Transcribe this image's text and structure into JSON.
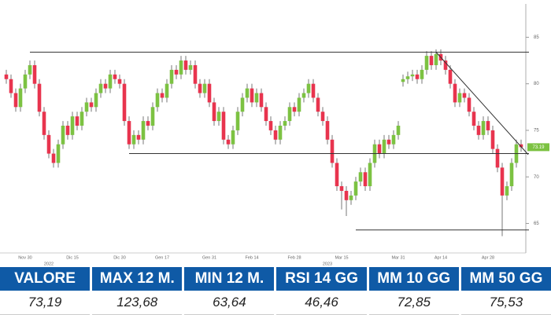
{
  "chart_data": {
    "type": "candlestick",
    "categories": [
      null,
      null,
      null,
      null,
      "Nov 30",
      null,
      null,
      null,
      null,
      null,
      null,
      null,
      null,
      null,
      "Dic 15",
      null,
      null,
      null,
      null,
      null,
      null,
      null,
      null,
      null,
      "Dic 30",
      null,
      null,
      null,
      null,
      null,
      null,
      null,
      null,
      "Gen 17",
      null,
      null,
      null,
      null,
      null,
      null,
      null,
      null,
      null,
      "Gen 31",
      null,
      null,
      null,
      null,
      null,
      null,
      null,
      null,
      "Feb 14",
      null,
      null,
      null,
      null,
      null,
      null,
      null,
      null,
      "Feb 28",
      null,
      null,
      null,
      null,
      null,
      null,
      null,
      null,
      null,
      "Mar 15",
      null,
      null,
      null,
      null,
      null,
      null,
      null,
      null,
      null,
      null,
      null,
      "Mar 31",
      null,
      null,
      null,
      null,
      null,
      null,
      null,
      null,
      "Apr 14",
      null,
      null,
      null,
      null,
      null,
      null,
      null,
      null,
      null,
      "Apr 28",
      null,
      null,
      null,
      null,
      null,
      null,
      null
    ],
    "year_labels": [
      null,
      null,
      null,
      null,
      null,
      null,
      null,
      null,
      null,
      "2022",
      null,
      null,
      null,
      null,
      null,
      null,
      null,
      null,
      null,
      null,
      null,
      null,
      null,
      null,
      null,
      null,
      null,
      null,
      null,
      null,
      null,
      null,
      null,
      null,
      null,
      null,
      null,
      null,
      null,
      null,
      null,
      null,
      null,
      null,
      null,
      null,
      null,
      null,
      null,
      null,
      null,
      null,
      null,
      null,
      null,
      null,
      null,
      null,
      null,
      null,
      null,
      null,
      null,
      null,
      null,
      null,
      null,
      null,
      "2023",
      null,
      null,
      null,
      null,
      null,
      null,
      null,
      null,
      null,
      null,
      null,
      null,
      null,
      null,
      null,
      null,
      null,
      null,
      null,
      null,
      null,
      null,
      null,
      null,
      null,
      null,
      null,
      null,
      null,
      null,
      null,
      null,
      null,
      null,
      null,
      null,
      null,
      null,
      null,
      null,
      null
    ],
    "open": [
      81.0,
      80.5,
      79.0,
      77.5,
      79.5,
      81.0,
      82.0,
      80.0,
      77.0,
      74.5,
      72.5,
      71.5,
      73.5,
      75.5,
      74.5,
      76.5,
      75.5,
      77.0,
      78.0,
      77.5,
      79.0,
      80.0,
      79.5,
      81.0,
      80.5,
      80.0,
      76.0,
      73.5,
      74.5,
      74.0,
      76.0,
      75.5,
      77.5,
      79.0,
      78.5,
      80.0,
      81.5,
      81.0,
      82.5,
      81.5,
      82.0,
      80.0,
      79.0,
      80.0,
      78.0,
      76.0,
      77.0,
      74.0,
      73.5,
      75.0,
      77.0,
      78.5,
      79.5,
      78.0,
      79.0,
      77.5,
      76.0,
      75.0,
      74.0,
      75.5,
      76.0,
      77.5,
      77.0,
      78.5,
      79.0,
      80.0,
      78.5,
      77.0,
      76.0,
      74.0,
      71.5,
      69.0,
      68.5,
      67.5,
      68.0,
      69.5,
      70.5,
      69.0,
      71.5,
      73.5,
      72.5,
      74.0,
      73.5,
      74.5,
      80.2,
      80.5,
      80.8,
      81.0,
      80.5,
      81.5,
      83.0,
      82.0,
      83.2,
      82.5,
      81.5,
      80.0,
      78.0,
      79.0,
      78.5,
      77.0,
      75.5,
      74.5,
      76.0,
      75.0,
      73.0,
      71.0,
      68.0,
      69.0,
      71.5,
      73.5
    ],
    "high": [
      81.5,
      81.0,
      79.5,
      80.0,
      81.5,
      82.5,
      82.5,
      80.5,
      77.5,
      75.0,
      73.0,
      74.0,
      76.0,
      76.0,
      77.0,
      77.0,
      77.5,
      78.5,
      78.5,
      79.5,
      80.5,
      80.5,
      81.5,
      81.5,
      81.0,
      80.5,
      76.5,
      75.0,
      75.0,
      76.5,
      76.5,
      78.0,
      79.5,
      79.5,
      80.5,
      82.0,
      82.0,
      83.0,
      83.0,
      82.5,
      82.5,
      80.5,
      80.5,
      80.5,
      78.5,
      77.5,
      77.5,
      74.5,
      75.5,
      77.5,
      79.0,
      80.0,
      80.0,
      79.5,
      79.5,
      78.0,
      76.5,
      75.5,
      76.0,
      76.5,
      78.0,
      78.0,
      79.0,
      79.5,
      80.5,
      80.5,
      79.0,
      77.5,
      76.5,
      74.5,
      72.0,
      69.5,
      69.0,
      68.5,
      70.0,
      71.0,
      71.0,
      72.0,
      74.0,
      74.0,
      74.5,
      74.5,
      75.0,
      76.0,
      81.0,
      81.3,
      81.5,
      81.5,
      82.0,
      83.5,
      83.5,
      83.7,
      83.7,
      83.0,
      82.0,
      80.5,
      79.5,
      79.5,
      79.0,
      77.5,
      76.0,
      76.5,
      76.5,
      75.5,
      73.5,
      71.5,
      69.5,
      72.0,
      74.0,
      74.0
    ],
    "low": [
      80.0,
      78.5,
      77.0,
      77.0,
      79.0,
      80.5,
      79.5,
      76.5,
      74.0,
      72.0,
      71.0,
      71.0,
      73.0,
      74.0,
      74.0,
      75.0,
      75.0,
      76.5,
      77.0,
      77.0,
      78.5,
      79.0,
      79.0,
      80.0,
      79.5,
      75.5,
      73.0,
      73.0,
      73.5,
      73.5,
      75.0,
      75.0,
      77.0,
      78.0,
      78.0,
      79.5,
      80.5,
      80.5,
      81.0,
      81.0,
      79.5,
      78.5,
      78.5,
      77.5,
      75.5,
      75.5,
      73.5,
      73.0,
      73.0,
      74.5,
      76.5,
      78.0,
      77.5,
      77.5,
      77.0,
      75.5,
      74.5,
      73.5,
      73.5,
      75.0,
      75.5,
      76.5,
      76.5,
      78.0,
      78.5,
      78.0,
      76.5,
      75.5,
      73.5,
      71.0,
      68.5,
      66.5,
      65.8,
      67.0,
      67.5,
      69.0,
      68.5,
      68.5,
      71.0,
      72.0,
      72.0,
      73.0,
      73.0,
      74.0,
      79.7,
      80.0,
      80.3,
      80.0,
      80.0,
      81.0,
      81.5,
      81.5,
      82.0,
      81.0,
      79.5,
      77.5,
      77.5,
      78.0,
      76.5,
      75.0,
      74.0,
      74.0,
      74.5,
      72.5,
      70.5,
      63.64,
      67.5,
      68.5,
      71.0,
      72.7
    ],
    "close": [
      80.5,
      79.0,
      77.5,
      79.5,
      81.0,
      82.0,
      80.0,
      77.0,
      74.5,
      72.5,
      71.5,
      73.5,
      75.5,
      74.5,
      76.5,
      75.5,
      77.0,
      78.0,
      77.5,
      79.0,
      80.0,
      79.5,
      81.0,
      80.5,
      80.0,
      76.0,
      73.5,
      74.5,
      74.0,
      76.0,
      75.5,
      77.5,
      79.0,
      78.5,
      80.0,
      81.5,
      81.0,
      82.5,
      81.5,
      82.0,
      80.0,
      79.0,
      80.0,
      78.0,
      76.0,
      77.0,
      74.0,
      73.5,
      75.0,
      77.0,
      78.5,
      79.5,
      78.0,
      79.0,
      77.5,
      76.0,
      75.0,
      74.0,
      75.5,
      76.0,
      77.5,
      77.0,
      78.5,
      79.0,
      80.0,
      78.5,
      77.0,
      76.0,
      74.0,
      71.5,
      69.0,
      68.5,
      67.5,
      68.0,
      69.5,
      70.5,
      69.0,
      71.5,
      73.5,
      72.5,
      74.0,
      73.5,
      74.5,
      75.5,
      80.5,
      80.8,
      81.0,
      80.5,
      81.5,
      83.0,
      82.0,
      83.2,
      82.5,
      81.5,
      80.0,
      78.0,
      79.0,
      78.5,
      77.0,
      75.5,
      74.5,
      76.0,
      75.0,
      73.0,
      71.0,
      68.0,
      69.0,
      71.5,
      73.5,
      73.19
    ],
    "up_color": "#7cc242",
    "down_color": "#e8344e",
    "line_color": "#333333",
    "ylim": [
      62,
      89
    ],
    "yticks": [
      65,
      70,
      75,
      80,
      85
    ],
    "levels": [
      {
        "value": 83.4,
        "start": 5
      },
      {
        "value": 72.5,
        "start": 26
      },
      {
        "value": 64.3,
        "start": 74
      }
    ],
    "trendline": {
      "start": [
        91,
        83.4
      ],
      "end": [
        110.5,
        72.4
      ]
    },
    "last_label": "73.19"
  },
  "table": {
    "headers": [
      "VALORE",
      "MAX 12 M.",
      "MIN 12 M.",
      "RSI 14 GG",
      "MM 10 GG",
      "MM 50 GG"
    ],
    "values": [
      "73,19",
      "123,68",
      "63,64",
      "46,46",
      "72,85",
      "75,53"
    ]
  }
}
